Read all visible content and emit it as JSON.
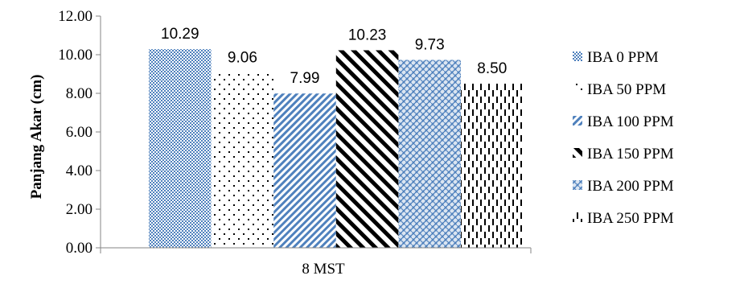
{
  "chart_data": {
    "type": "bar",
    "categories": [
      "8 MST"
    ],
    "series": [
      {
        "name": "IBA 0 PPM",
        "values": [
          10.29
        ],
        "value_label": "10.29",
        "pattern": "checker"
      },
      {
        "name": "IBA 50 PPM",
        "values": [
          9.06
        ],
        "value_label": "9.06",
        "pattern": "dots"
      },
      {
        "name": "IBA 100 PPM",
        "values": [
          7.99
        ],
        "value_label": "7.99",
        "pattern": "diag-blue"
      },
      {
        "name": "IBA 150 PPM",
        "values": [
          10.23
        ],
        "value_label": "10.23",
        "pattern": "diag-black"
      },
      {
        "name": "IBA 200 PPM",
        "values": [
          9.73
        ],
        "value_label": "9.73",
        "pattern": "weave"
      },
      {
        "name": "IBA 250 PPM",
        "values": [
          8.5
        ],
        "value_label": "8.50",
        "pattern": "dashes"
      }
    ],
    "title": "",
    "xlabel": "",
    "ylabel": "Panjang Akar  (cm)",
    "ylim": [
      0,
      12
    ],
    "yticks": [
      "0.00",
      "2.00",
      "4.00",
      "6.00",
      "8.00",
      "10.00",
      "12.00"
    ],
    "grid": false,
    "legend_position": "right",
    "colors": {
      "blue": "#4f81bd",
      "black": "#000000"
    }
  }
}
